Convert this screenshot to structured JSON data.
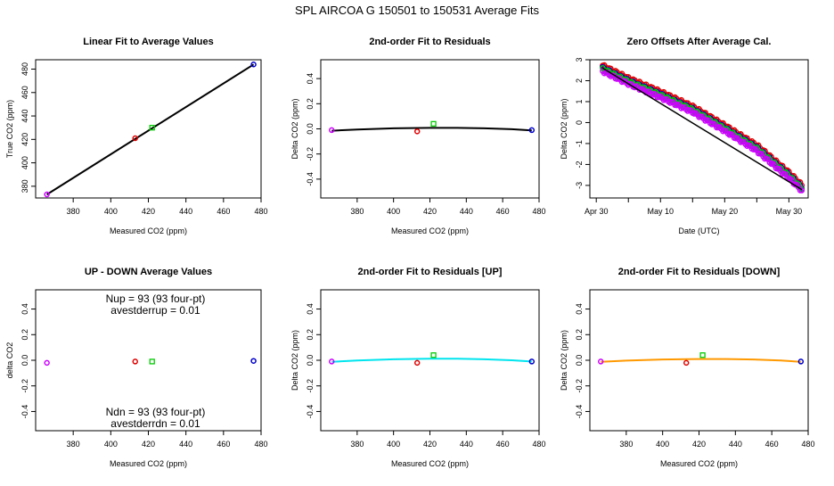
{
  "page_title": "SPL   AIRCOA G   150501 to 150531   Average Fits",
  "colors": {
    "purple": "#cc00ff",
    "red": "#e00000",
    "green": "#00cc00",
    "blue": "#0000cc",
    "black": "#000000",
    "cyan": "#00e5ee",
    "orange": "#ff9900"
  },
  "chart_data": [
    {
      "id": "linear",
      "type": "scatter",
      "title": "Linear Fit to Average Values",
      "xlabel": "Measured CO2 (ppm)",
      "ylabel": "True CO2 (ppm)",
      "xlim": [
        360,
        480
      ],
      "ylim": [
        370,
        488
      ],
      "xticks": [
        "380",
        "400",
        "420",
        "440",
        "460",
        "480"
      ],
      "yticks": [
        "380",
        "400",
        "420",
        "440",
        "460",
        "480"
      ],
      "points": [
        {
          "x": 366,
          "y": 373,
          "color": "purple"
        },
        {
          "x": 413,
          "y": 421,
          "color": "red"
        },
        {
          "x": 422,
          "y": 430,
          "color": "green"
        },
        {
          "x": 476,
          "y": 484,
          "color": "blue"
        }
      ],
      "fit_line": {
        "x": [
          366,
          476
        ],
        "y": [
          373,
          484
        ],
        "color": "black"
      }
    },
    {
      "id": "resid",
      "type": "scatter",
      "title": "2nd-order Fit to Residuals",
      "xlabel": "Measured CO2 (ppm)",
      "ylabel": "Delta CO2 (ppm)",
      "xlim": [
        360,
        480
      ],
      "ylim": [
        -0.55,
        0.55
      ],
      "xticks": [
        "380",
        "400",
        "420",
        "440",
        "460",
        "480"
      ],
      "yticks": [
        "-0.4",
        "-0.2",
        "0.0",
        "0.2",
        "0.4"
      ],
      "points": [
        {
          "x": 366,
          "y": -0.01,
          "color": "purple"
        },
        {
          "x": 413,
          "y": -0.02,
          "color": "red"
        },
        {
          "x": 422,
          "y": 0.04,
          "color": "green"
        },
        {
          "x": 476,
          "y": -0.01,
          "color": "blue"
        }
      ],
      "fit_curve": {
        "x": [
          366,
          380,
          400,
          420,
          435,
          450,
          465,
          476
        ],
        "y": [
          -0.015,
          -0.005,
          0.004,
          0.008,
          0.008,
          0.004,
          -0.003,
          -0.012
        ],
        "color": "black"
      }
    },
    {
      "id": "zero",
      "type": "scatter",
      "title": "Zero Offsets After Average Cal.",
      "xlabel": "Date (UTC)",
      "ylabel": "Delta CO2 (ppm)",
      "xlim": [
        -1,
        33
      ],
      "ylim": [
        -3.6,
        3.0
      ],
      "xtick_positions": [
        0,
        10,
        20,
        30
      ],
      "xticks": [
        "Apr 30",
        "May 10",
        "May 20",
        "May 30"
      ],
      "yticks": [
        "-3",
        "-2",
        "-1",
        "0",
        "1",
        "2",
        "3"
      ],
      "ytick_values": [
        -3,
        -2,
        -1,
        0,
        1,
        2,
        3
      ],
      "series": [
        {
          "color": "red",
          "offset": 0.12
        },
        {
          "color": "blue",
          "offset": 0.0
        },
        {
          "color": "green",
          "offset": -0.05
        },
        {
          "color": "purple",
          "offset": -0.15
        }
      ],
      "trend": {
        "x": [
          1,
          5,
          10,
          15,
          20,
          25,
          30,
          32
        ],
        "y": [
          2.6,
          2.0,
          1.35,
          0.65,
          -0.25,
          -1.2,
          -2.5,
          -3.1
        ]
      },
      "fit_line": {
        "x": [
          1,
          32
        ],
        "y": [
          2.6,
          -3.2
        ],
        "color": "black"
      }
    },
    {
      "id": "updown",
      "type": "scatter",
      "title": "UP - DOWN Average Values",
      "xlabel": "Measured CO2 (ppm)",
      "ylabel": "delta CO2",
      "xlim": [
        360,
        480
      ],
      "ylim": [
        -0.55,
        0.55
      ],
      "xticks": [
        "380",
        "400",
        "420",
        "440",
        "460",
        "480"
      ],
      "yticks": [
        "-0.4",
        "-0.2",
        "0.0",
        "0.2",
        "0.4"
      ],
      "points": [
        {
          "x": 366,
          "y": -0.02,
          "color": "purple"
        },
        {
          "x": 413,
          "y": -0.01,
          "color": "red"
        },
        {
          "x": 422,
          "y": -0.01,
          "color": "green"
        },
        {
          "x": 476,
          "y": -0.005,
          "color": "blue"
        }
      ],
      "annotations": {
        "nup": "Nup = 93 (93 four-pt)",
        "avestderrup": "avestderrup =  0.01",
        "ndn": "Ndn = 93 (93 four-pt)",
        "avestderrdn": "avestderrdn =  0.01"
      }
    },
    {
      "id": "up",
      "type": "scatter",
      "title": "2nd-order Fit to Residuals [UP]",
      "xlabel": "Measured CO2 (ppm)",
      "ylabel": "Delta CO2 (ppm)",
      "xlim": [
        360,
        480
      ],
      "ylim": [
        -0.55,
        0.55
      ],
      "xticks": [
        "380",
        "400",
        "420",
        "440",
        "460",
        "480"
      ],
      "yticks": [
        "-0.4",
        "-0.2",
        "0.0",
        "0.2",
        "0.4"
      ],
      "points": [
        {
          "x": 366,
          "y": -0.01,
          "color": "purple"
        },
        {
          "x": 413,
          "y": -0.02,
          "color": "red"
        },
        {
          "x": 422,
          "y": 0.04,
          "color": "green"
        },
        {
          "x": 476,
          "y": -0.01,
          "color": "blue"
        }
      ],
      "fit_curve": {
        "x": [
          366,
          380,
          400,
          420,
          435,
          450,
          465,
          476
        ],
        "y": [
          -0.012,
          -0.002,
          0.008,
          0.012,
          0.012,
          0.008,
          0.0,
          -0.01
        ],
        "color": "cyan"
      }
    },
    {
      "id": "down",
      "type": "scatter",
      "title": "2nd-order Fit to Residuals [DOWN]",
      "xlabel": "Measured CO2 (ppm)",
      "ylabel": "Delta CO2 (ppm)",
      "xlim": [
        360,
        480
      ],
      "ylim": [
        -0.55,
        0.55
      ],
      "xticks": [
        "380",
        "400",
        "420",
        "440",
        "460",
        "480"
      ],
      "yticks": [
        "-0.4",
        "-0.2",
        "0.0",
        "0.2",
        "0.4"
      ],
      "points": [
        {
          "x": 366,
          "y": -0.01,
          "color": "purple"
        },
        {
          "x": 413,
          "y": -0.02,
          "color": "red"
        },
        {
          "x": 422,
          "y": 0.04,
          "color": "green"
        },
        {
          "x": 476,
          "y": -0.01,
          "color": "blue"
        }
      ],
      "fit_curve": {
        "x": [
          366,
          380,
          400,
          420,
          435,
          450,
          465,
          476
        ],
        "y": [
          -0.012,
          -0.003,
          0.006,
          0.01,
          0.01,
          0.006,
          -0.002,
          -0.012
        ],
        "color": "orange"
      }
    }
  ]
}
